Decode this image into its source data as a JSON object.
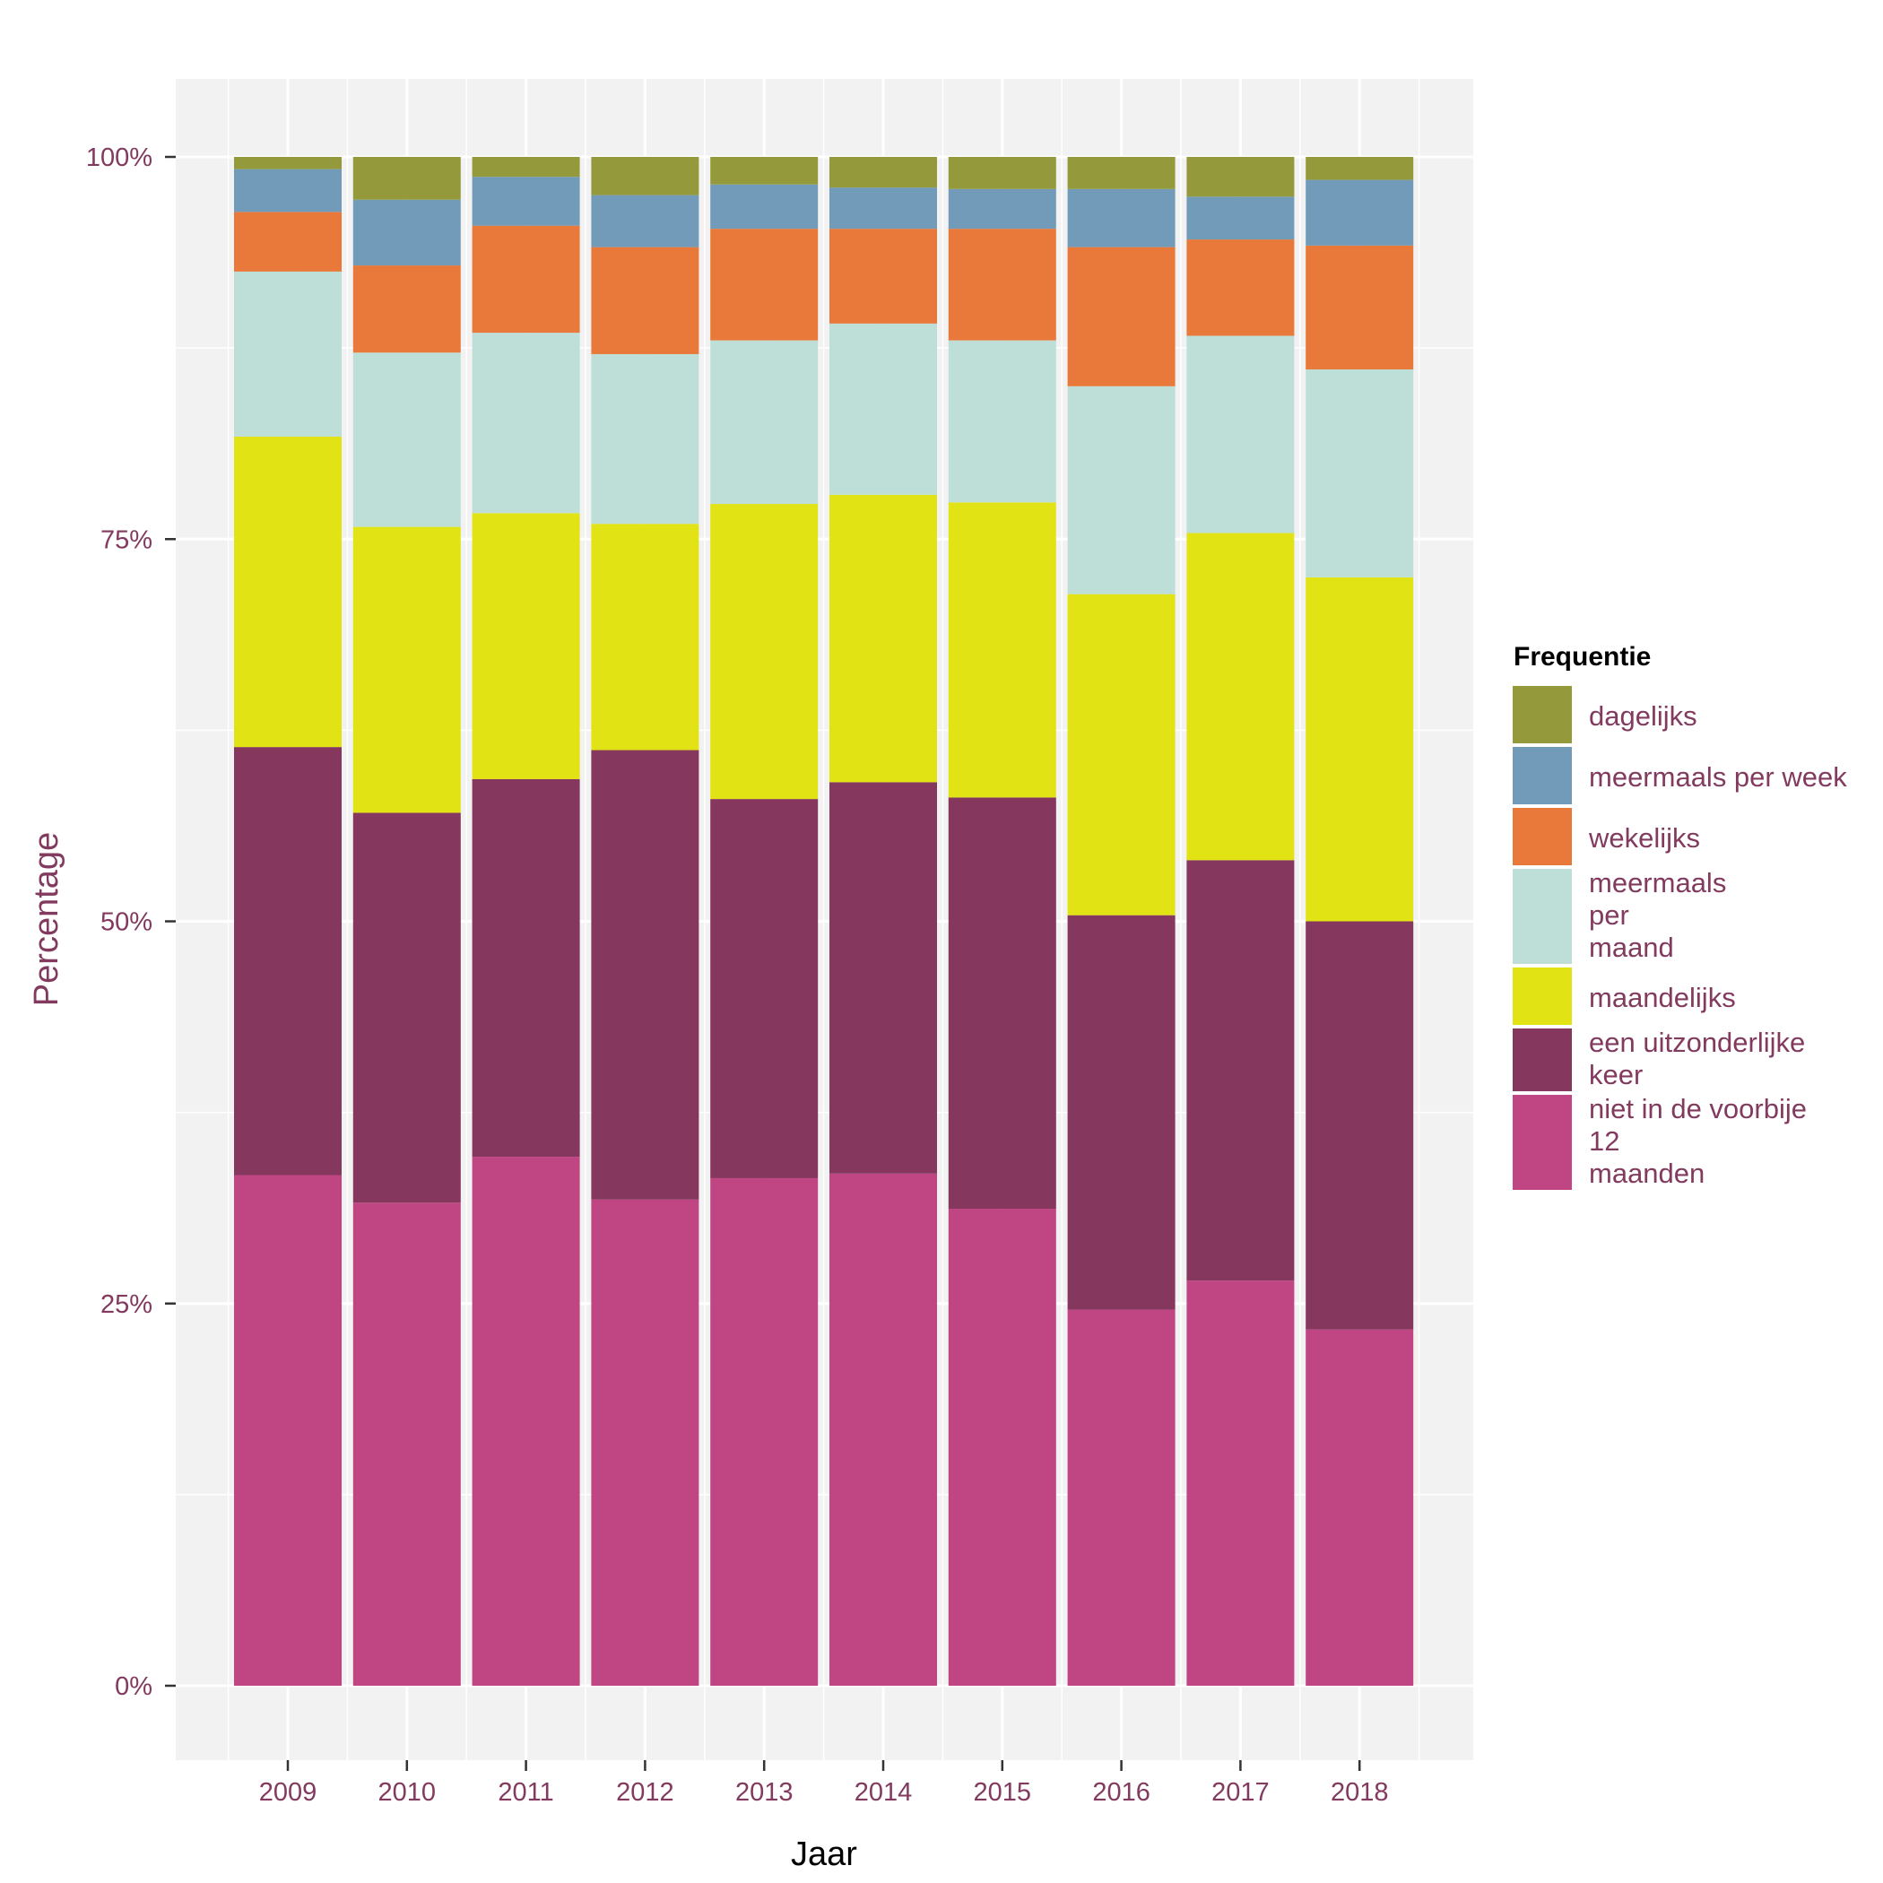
{
  "chart_data": {
    "type": "bar",
    "stacked": true,
    "xlabel": "Jaar",
    "ylabel": "Percentage",
    "ylim": [
      0,
      100
    ],
    "yticks": [
      "0%",
      "25%",
      "50%",
      "75%",
      "100%"
    ],
    "categories": [
      "2009",
      "2010",
      "2011",
      "2012",
      "2013",
      "2014",
      "2015",
      "2016",
      "2017",
      "2018"
    ],
    "legend_title": "Frequentie",
    "legend_position": "right",
    "grid": true,
    "series": [
      {
        "name": "niet in de voorbije 12 maanden",
        "label_lines": [
          "niet in de voorbije",
          "12",
          "maanden"
        ],
        "color": "#bf4583",
        "values": [
          33.4,
          31.6,
          34.6,
          31.8,
          33.2,
          33.5,
          31.2,
          24.6,
          26.5,
          23.3
        ]
      },
      {
        "name": "een uitzonderlijke keer",
        "label_lines": [
          "een uitzonderlijke",
          "keer"
        ],
        "color": "#85375e",
        "values": [
          28.0,
          25.5,
          24.7,
          29.4,
          24.8,
          25.6,
          26.9,
          25.8,
          27.5,
          26.7
        ]
      },
      {
        "name": "maandelijks",
        "label_lines": [
          "maandelijks"
        ],
        "color": "#e2e314",
        "values": [
          20.3,
          18.7,
          17.4,
          14.8,
          19.3,
          18.8,
          19.3,
          21.0,
          21.4,
          22.5
        ]
      },
      {
        "name": "meermaals per maand",
        "label_lines": [
          "meermaals",
          "per",
          "maand"
        ],
        "color": "#bddfd7",
        "values": [
          10.8,
          11.4,
          11.8,
          11.1,
          10.7,
          11.2,
          10.6,
          13.6,
          12.9,
          13.6
        ]
      },
      {
        "name": "wekelijks",
        "label_lines": [
          "wekelijks"
        ],
        "color": "#e8793a",
        "values": [
          3.9,
          5.7,
          7.0,
          7.0,
          7.3,
          6.2,
          7.3,
          9.1,
          6.3,
          8.1
        ]
      },
      {
        "name": "meermaals per week",
        "label_lines": [
          "meermaals per week"
        ],
        "color": "#729bb9",
        "values": [
          2.8,
          4.3,
          3.2,
          3.4,
          2.9,
          2.7,
          2.6,
          3.8,
          2.8,
          4.3
        ]
      },
      {
        "name": "dagelijks",
        "label_lines": [
          "dagelijks"
        ],
        "color": "#949a3c",
        "values": [
          0.8,
          2.8,
          1.3,
          2.5,
          1.8,
          2.0,
          2.1,
          2.1,
          2.6,
          1.5
        ]
      }
    ]
  }
}
